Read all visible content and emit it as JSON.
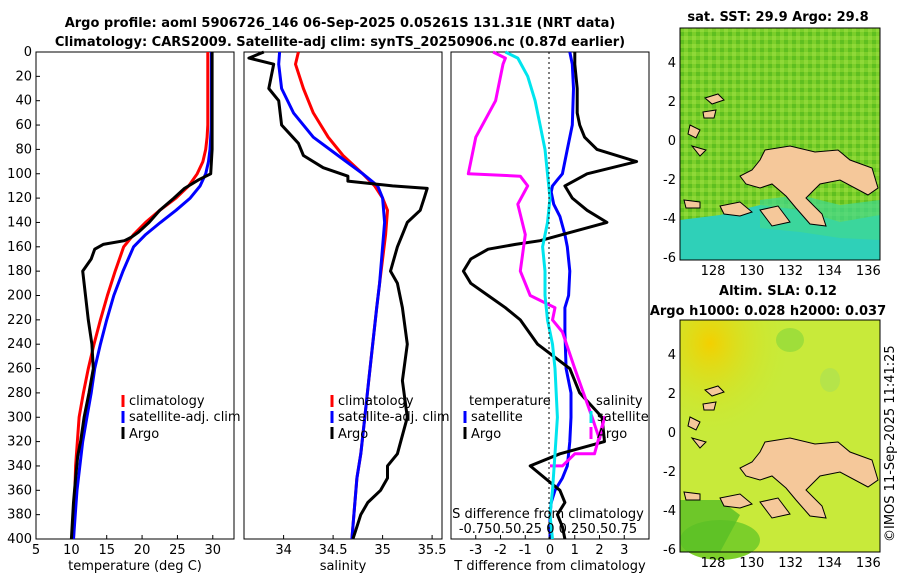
{
  "title": {
    "line1": "Argo profile: aoml 5906726_146 06-Sep-2025 0.05261S 131.31E (NRT data)",
    "line2": "Climatology: CARS2009. Satellite-adj clim: synTS_20250906.nc (0.87d earlier)"
  },
  "colors": {
    "climatology": "#ff0000",
    "satellite": "#0000ff",
    "argo": "#000000",
    "temp_diff": "#ff00ff",
    "sal_diff": "#00e5ee"
  },
  "chart_data": [
    {
      "type": "line",
      "id": "temperature",
      "xlabel": "temperature (deg C)",
      "ylabel": "",
      "xlim": [
        5,
        33
      ],
      "ylim": [
        400,
        0
      ],
      "xticks": [
        5,
        10,
        15,
        20,
        25,
        30
      ],
      "yticks": [
        0,
        20,
        40,
        60,
        80,
        100,
        120,
        140,
        160,
        180,
        200,
        220,
        240,
        260,
        280,
        300,
        320,
        340,
        360,
        380,
        400
      ],
      "legend": [
        "climatology",
        "satellite-adj. clim",
        "Argo"
      ],
      "series": [
        {
          "name": "climatology",
          "color": "#ff0000",
          "x": [
            29.3,
            29.3,
            29.3,
            29.3,
            29.2,
            29.0,
            28.6,
            27.8,
            26.6,
            24.8,
            22.5,
            20.5,
            18.8,
            17.4,
            16.2,
            15.1,
            14.1,
            13.2,
            12.4,
            11.7,
            11.1,
            10.6,
            10.3
          ],
          "y": [
            0,
            20,
            40,
            60,
            70,
            80,
            90,
            100,
            110,
            120,
            130,
            140,
            150,
            160,
            180,
            200,
            220,
            240,
            260,
            280,
            300,
            340,
            400
          ]
        },
        {
          "name": "satellite-adj. clim",
          "color": "#0000ff",
          "x": [
            29.8,
            29.8,
            29.8,
            29.8,
            29.7,
            29.6,
            29.4,
            29.0,
            28.2,
            26.8,
            24.8,
            22.6,
            20.5,
            18.8,
            17.3,
            16.0,
            15.0,
            14.1,
            13.3,
            12.8,
            12.2,
            11.6,
            10.8,
            10.3
          ],
          "y": [
            0,
            20,
            40,
            60,
            70,
            80,
            90,
            100,
            110,
            120,
            130,
            140,
            150,
            160,
            180,
            200,
            220,
            240,
            260,
            280,
            300,
            320,
            360,
            400
          ]
        },
        {
          "name": "Argo",
          "color": "#000000",
          "x": [
            29.9,
            29.9,
            29.9,
            29.9,
            29.9,
            29.8,
            29.7,
            28.0,
            26.0,
            24.5,
            22.5,
            21.0,
            19.5,
            18.5,
            17.5,
            14.5,
            13.3,
            12.8,
            11.6,
            12.0,
            12.4,
            12.9,
            13.1,
            12.5,
            11.8,
            11.3,
            10.9,
            10.6,
            10.3,
            10.1,
            10.0
          ],
          "y": [
            0,
            20,
            40,
            60,
            80,
            90,
            100,
            105,
            112,
            120,
            130,
            140,
            148,
            152,
            155,
            158,
            162,
            170,
            180,
            200,
            220,
            240,
            260,
            280,
            300,
            320,
            332,
            350,
            370,
            390,
            400
          ]
        }
      ]
    },
    {
      "type": "line",
      "id": "salinity",
      "xlabel": "salinity",
      "ylabel": "",
      "xlim": [
        33.6,
        35.6
      ],
      "ylim": [
        400,
        0
      ],
      "xticks": [
        34,
        34.5,
        35,
        35.5
      ],
      "legend": [
        "climatology",
        "satellite-adj. clim",
        "Argo"
      ],
      "series": [
        {
          "name": "climatology",
          "color": "#ff0000",
          "x": [
            34.15,
            34.12,
            34.2,
            34.3,
            34.45,
            34.6,
            34.8,
            34.92,
            35.0,
            35.05,
            35.03,
            35.0,
            34.97,
            34.94,
            34.9,
            34.86,
            34.82,
            34.78,
            34.74,
            34.72,
            34.7,
            34.69
          ],
          "y": [
            0,
            10,
            30,
            50,
            70,
            85,
            100,
            110,
            120,
            130,
            150,
            170,
            190,
            210,
            240,
            270,
            300,
            330,
            350,
            370,
            390,
            400
          ]
        },
        {
          "name": "satellite-adj. clim",
          "color": "#0000ff",
          "x": [
            33.96,
            33.95,
            33.98,
            34.1,
            34.3,
            34.55,
            34.8,
            34.95,
            35.0,
            35.02,
            35.0,
            34.97,
            34.94,
            34.9,
            34.86,
            34.82,
            34.78,
            34.74,
            34.72,
            34.7,
            34.69
          ],
          "y": [
            0,
            10,
            30,
            50,
            70,
            85,
            100,
            110,
            120,
            140,
            160,
            190,
            210,
            240,
            270,
            300,
            330,
            350,
            370,
            390,
            400
          ]
        },
        {
          "name": "Argo",
          "color": "#000000",
          "x": [
            33.8,
            33.65,
            33.9,
            33.85,
            33.95,
            33.98,
            34.15,
            34.2,
            34.4,
            34.65,
            34.65,
            35.1,
            35.45,
            35.42,
            35.38,
            35.25,
            35.2,
            35.15,
            35.08,
            35.15,
            35.2,
            35.25,
            35.2,
            35.25,
            35.15,
            35.05,
            35.05,
            34.98,
            34.85,
            34.78,
            34.74,
            34.7
          ],
          "y": [
            0,
            5,
            10,
            30,
            40,
            60,
            75,
            85,
            95,
            102,
            106,
            110,
            112,
            120,
            130,
            140,
            150,
            160,
            180,
            190,
            210,
            240,
            270,
            300,
            330,
            340,
            350,
            360,
            370,
            380,
            390,
            400
          ]
        }
      ]
    },
    {
      "type": "line",
      "id": "difference",
      "xlabel": "T difference from climatology",
      "ylabel": "",
      "xlim": [
        -4,
        4
      ],
      "ylim": [
        400,
        0
      ],
      "xticks": [
        -3,
        -2,
        -1,
        0,
        1,
        2,
        3
      ],
      "legend_left": {
        "title": "temperature",
        "items": [
          "satellite",
          "Argo"
        ]
      },
      "legend_right": {
        "title": "salinity",
        "items": [
          "satellite",
          "Argo"
        ]
      },
      "secondary_axis_label": "S difference from climatology",
      "secondary_ticks": "-0.750.50.25  0  0.250.50.75",
      "series": [
        {
          "name": "T satellite",
          "color": "#0000ff",
          "x": [
            0.8,
            0.9,
            0.95,
            0.9,
            0.7,
            0.5,
            0.3,
            0.1,
            0.05,
            0.15,
            0.4,
            0.6,
            0.7,
            0.8,
            0.75,
            0.6,
            0.6,
            0.65,
            0.85,
            0.85,
            0.8,
            0.75,
            0.7,
            0.5,
            0.2,
            0.05,
            0,
            0
          ],
          "y": [
            0,
            10,
            30,
            60,
            80,
            100,
            105,
            110,
            115,
            125,
            135,
            150,
            160,
            180,
            200,
            210,
            230,
            260,
            280,
            300,
            320,
            330,
            340,
            350,
            360,
            370,
            380,
            400
          ]
        },
        {
          "name": "T Argo",
          "color": "#000000",
          "x": [
            1.0,
            1.0,
            1.1,
            1.1,
            1.2,
            1.4,
            1.9,
            3.5,
            1.5,
            0.6,
            0.9,
            1.5,
            2.3,
            0.5,
            -0.4,
            -1.4,
            -2.5,
            -3.2,
            -3.5,
            -3.2,
            -2.5,
            -1.8,
            -1.2,
            -0.5,
            0.8,
            1.2,
            2.1,
            2.2,
            0.4,
            -0.8,
            -0.2,
            0.4,
            0.6,
            0.3,
            0.5,
            0.6
          ],
          "y": [
            0,
            10,
            30,
            50,
            60,
            70,
            80,
            90,
            100,
            110,
            120,
            130,
            140,
            150,
            155,
            158,
            162,
            170,
            180,
            190,
            200,
            210,
            220,
            240,
            260,
            280,
            300,
            320,
            330,
            340,
            350,
            360,
            370,
            380,
            390,
            400
          ]
        }
      ]
    }
  ],
  "maps": {
    "sst": {
      "title": "sat. SST: 29.9 Argo: 29.8",
      "xticks": [
        128,
        130,
        132,
        134,
        136
      ],
      "yticks": [
        4,
        2,
        0,
        -2,
        -4,
        -6
      ]
    },
    "sla": {
      "title1": "Altim. SLA: 0.12",
      "title2": "Argo h1000: 0.028 h2000: 0.037",
      "xticks": [
        128,
        130,
        132,
        134,
        136
      ],
      "yticks": [
        4,
        2,
        0,
        -2,
        -4,
        -6
      ]
    }
  },
  "watermark": "©IMOS 11-Sep-2025 11:41:25"
}
